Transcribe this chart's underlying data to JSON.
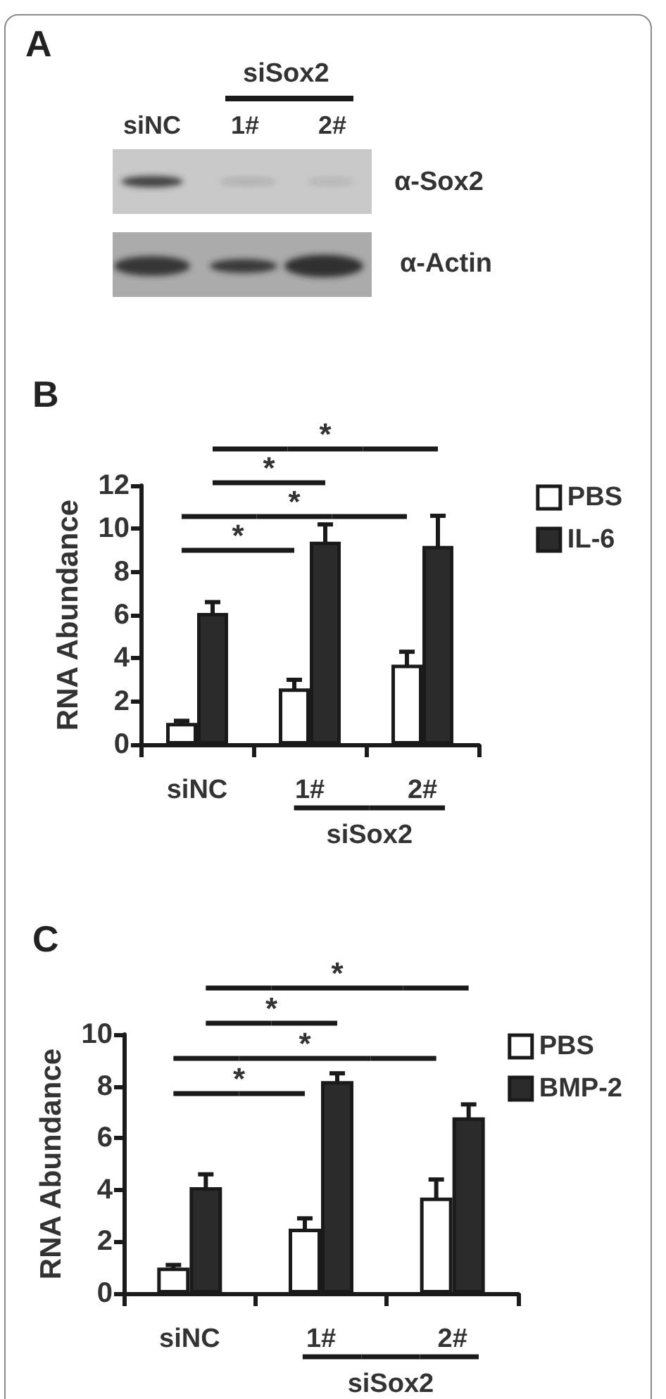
{
  "chart_data": [
    {
      "type": "other",
      "title": "A",
      "annotations": [
        "siSox2",
        "siNC",
        "1#",
        "2#",
        "α-Sox2",
        "α-Actin"
      ]
    },
    {
      "type": "bar",
      "title": "B",
      "categories": [
        "siNC",
        "1#",
        "2#"
      ],
      "ylabel": "RNA Abundance",
      "ylim": [
        0,
        12
      ],
      "yticks": [
        0,
        2,
        4,
        6,
        8,
        10,
        12
      ],
      "legend": "top right",
      "series": [
        {
          "name": "PBS",
          "color": "#ffffff",
          "values": [
            1.0,
            2.6,
            3.7
          ],
          "errors": [
            0.1,
            0.4,
            0.6
          ]
        },
        {
          "name": "IL-6",
          "color": "#2b2b2b",
          "values": [
            6.1,
            9.4,
            9.2
          ],
          "errors": [
            0.5,
            0.8,
            1.4
          ]
        }
      ],
      "annotations": [
        "*",
        "*",
        "*",
        "*",
        "siSox2"
      ]
    },
    {
      "type": "bar",
      "title": "C",
      "categories": [
        "siNC",
        "1#",
        "2#"
      ],
      "ylabel": "RNA Abundance",
      "ylim": [
        0,
        10
      ],
      "yticks": [
        0,
        2,
        4,
        6,
        8,
        10
      ],
      "legend": "top right",
      "series": [
        {
          "name": "PBS",
          "color": "#ffffff",
          "values": [
            1.0,
            2.5,
            3.7
          ],
          "errors": [
            0.1,
            0.4,
            0.7
          ]
        },
        {
          "name": "BMP-2",
          "color": "#2b2b2b",
          "values": [
            4.1,
            8.2,
            6.8
          ],
          "errors": [
            0.5,
            0.3,
            0.5
          ]
        }
      ],
      "annotations": [
        "*",
        "*",
        "*",
        "*",
        "siSox2"
      ]
    }
  ]
}
